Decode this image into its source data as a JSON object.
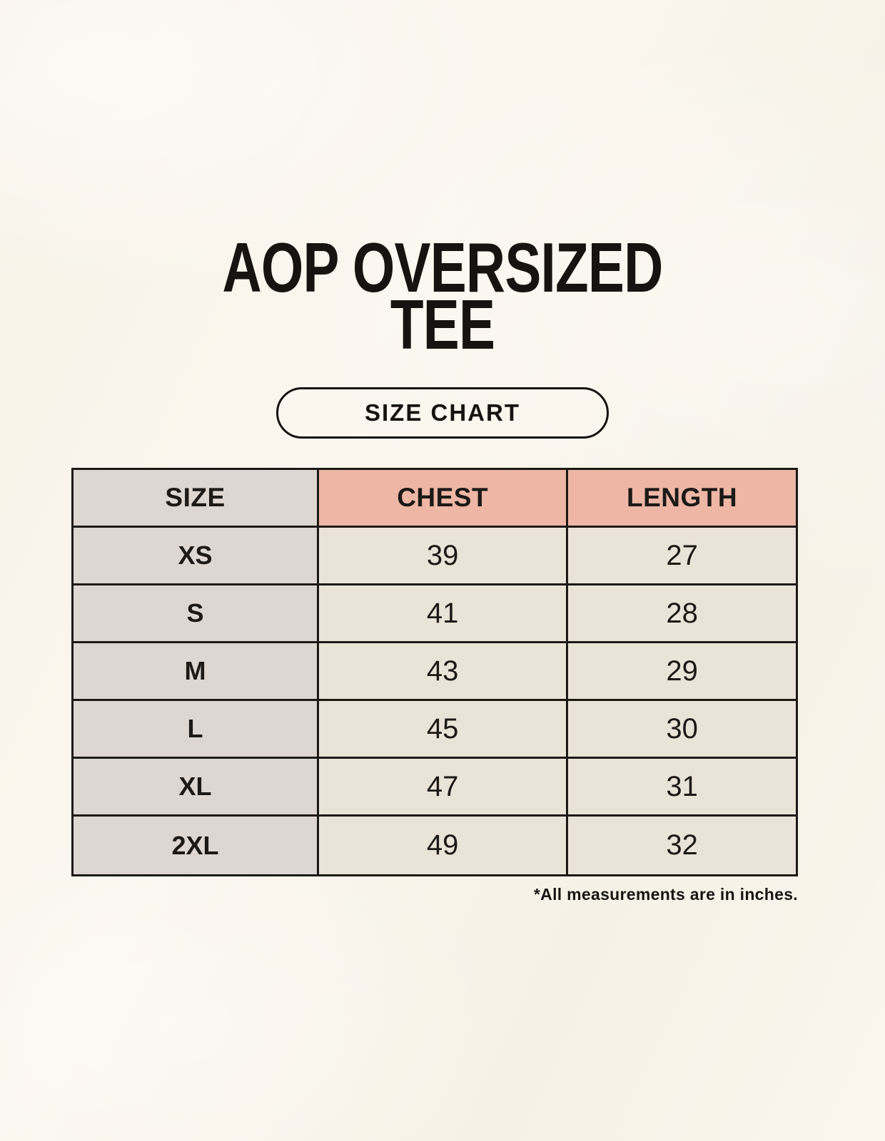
{
  "title": {
    "line1": "AOP OVERSIZED",
    "line2": "TEE"
  },
  "badge": {
    "label": "SIZE CHART"
  },
  "footnote": "*All measurements are in inches.",
  "colors": {
    "page_background": "#f9f5ec",
    "ink": "#1c1916",
    "size_column_bg": "#ddd6d1",
    "header_accent_bg": "#edb6a5",
    "data_cell_bg": "#eae3d7"
  },
  "chart_data": {
    "type": "table",
    "title": "AOP OVERSIZED TEE",
    "columns": [
      "SIZE",
      "CHEST",
      "LENGTH"
    ],
    "rows": [
      [
        "XS",
        39,
        27
      ],
      [
        "S",
        41,
        28
      ],
      [
        "M",
        43,
        29
      ],
      [
        "L",
        45,
        30
      ],
      [
        "XL",
        47,
        31
      ],
      [
        "2XL",
        49,
        32
      ]
    ],
    "units_note": "*All measurements are in inches.",
    "layout": {
      "header_row_accent": true,
      "grid": "on",
      "units": "inches"
    }
  }
}
